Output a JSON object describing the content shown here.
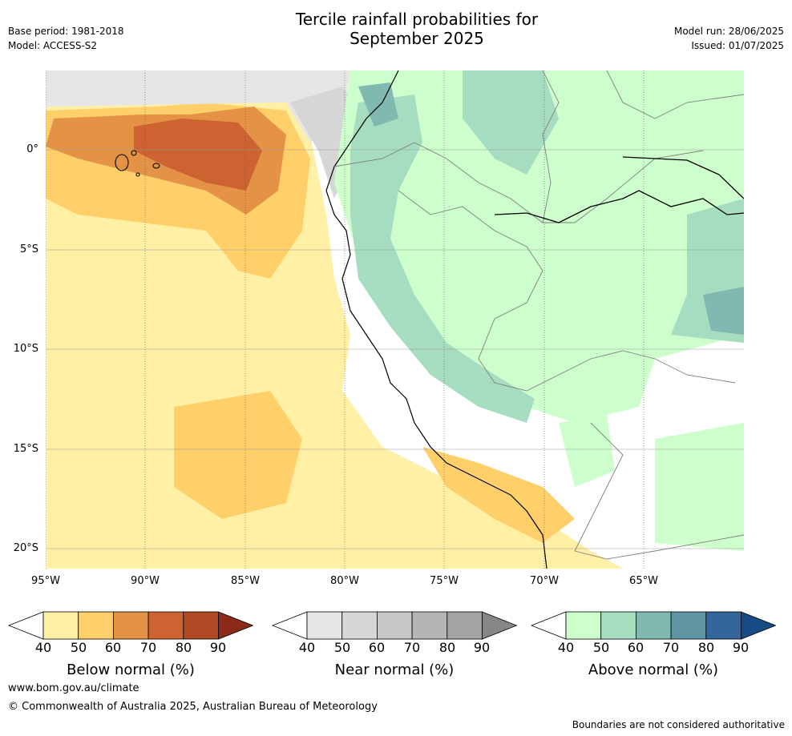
{
  "header": {
    "title_line1": "Tercile rainfall probabilities for",
    "title_line2": "September 2025",
    "base_period": "Base period: 1981-2018",
    "model": "Model: ACCESS-S2",
    "model_run": "Model run: 28/06/2025",
    "issued": "Issued: 01/07/2025"
  },
  "map": {
    "lat_labels": [
      "0°",
      "5°S",
      "10°S",
      "15°S",
      "20°S"
    ],
    "lon_labels": [
      "95°W",
      "90°W",
      "85°W",
      "80°W",
      "75°W",
      "70°W",
      "65°W"
    ]
  },
  "colorbars": [
    {
      "label": "Below normal (%)",
      "ticks": [
        "40",
        "50",
        "60",
        "70",
        "80",
        "90"
      ],
      "colors": [
        "#ffffff",
        "#fff0a6",
        "#ffd06a",
        "#e49346",
        "#cd6331",
        "#b04823",
        "#8c2a18"
      ]
    },
    {
      "label": "Near normal (%)",
      "ticks": [
        "40",
        "50",
        "60",
        "70",
        "80",
        "90"
      ],
      "colors": [
        "#ffffff",
        "#e6e6e6",
        "#d6d6d6",
        "#c6c6c6",
        "#b5b5b5",
        "#a3a3a3",
        "#868686"
      ]
    },
    {
      "label": "Above normal (%)",
      "ticks": [
        "40",
        "50",
        "60",
        "70",
        "80",
        "90"
      ],
      "colors": [
        "#ffffff",
        "#ccffcc",
        "#a6dcc0",
        "#7fb9b0",
        "#5f95a3",
        "#33669a",
        "#174b85"
      ]
    }
  ],
  "footer": {
    "website": "www.bom.gov.au/climate",
    "copyright": "© Commonwealth of Australia 2025, Australian Bureau of Meteorology",
    "disclaimer": "Boundaries are not considered authoritative"
  }
}
